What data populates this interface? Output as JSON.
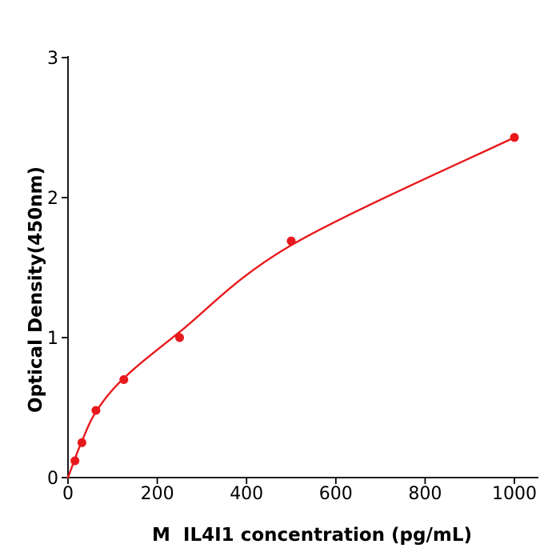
{
  "figure": {
    "background": "#ffffff",
    "axis_color": "#000000",
    "text_color": "#000000"
  },
  "chart_data": {
    "type": "scatter",
    "title": "",
    "xlabel": "M  IL4I1 concentration (pg/mL)",
    "ylabel": "Optical Density(450nm)",
    "x_ticks": [
      0,
      200,
      400,
      600,
      800,
      1000
    ],
    "y_ticks": [
      0,
      1,
      2,
      3
    ],
    "xlim": [
      0,
      1054
    ],
    "ylim": [
      0,
      3.01
    ],
    "grid": false,
    "legend_position": "none",
    "series_color": "#e8191c",
    "marker": "circle",
    "marker_radius": 5.5,
    "line_width": 2.4,
    "points": [
      [
        15.6,
        0.12
      ],
      [
        31.2,
        0.25
      ],
      [
        62.5,
        0.48
      ],
      [
        125,
        0.7
      ],
      [
        250,
        1.0
      ],
      [
        500,
        1.69
      ],
      [
        1000,
        2.43
      ]
    ],
    "fit_curve": [
      [
        0,
        0
      ],
      [
        15.6,
        0.135
      ],
      [
        31.2,
        0.26
      ],
      [
        62.5,
        0.47
      ],
      [
        125,
        0.71
      ],
      [
        250,
        1.04
      ],
      [
        500,
        1.66
      ],
      [
        1000,
        2.43
      ]
    ]
  }
}
